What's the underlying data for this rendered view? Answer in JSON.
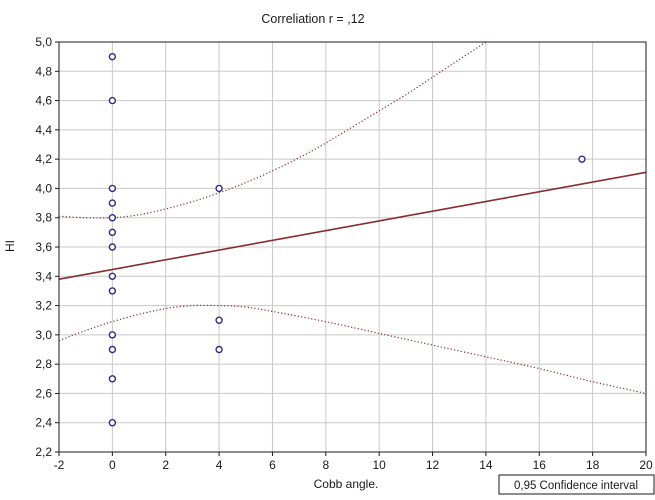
{
  "chart_data": {
    "type": "scatter",
    "title": "Correliation  r =   ,12",
    "xlabel": "Cobb angle.",
    "ylabel": "HI",
    "xlim": [
      -2,
      20
    ],
    "ylim": [
      2.2,
      5.0
    ],
    "x_ticks": [
      -2,
      0,
      2,
      4,
      6,
      8,
      10,
      12,
      14,
      16,
      18,
      20
    ],
    "x_tick_labels": [
      "-2",
      "0",
      "2",
      "4",
      "6",
      "8",
      "10",
      "12",
      "14",
      "16",
      "18",
      "20"
    ],
    "y_ticks": [
      2.2,
      2.4,
      2.6,
      2.8,
      3.0,
      3.2,
      3.4,
      3.6,
      3.8,
      4.0,
      4.2,
      4.4,
      4.6,
      4.8,
      5.0
    ],
    "y_tick_labels": [
      "2,2",
      "2,4",
      "2,6",
      "2,8",
      "3,0",
      "3,2",
      "3,4",
      "3,6",
      "3,8",
      "4,0",
      "4,2",
      "4,4",
      "4,6",
      "4,8",
      "5,0"
    ],
    "grid": true,
    "points": [
      {
        "x": 0,
        "y": 4.9
      },
      {
        "x": 0,
        "y": 4.6
      },
      {
        "x": 0,
        "y": 4.0
      },
      {
        "x": 0,
        "y": 3.9
      },
      {
        "x": 0,
        "y": 3.8
      },
      {
        "x": 0,
        "y": 3.7
      },
      {
        "x": 0,
        "y": 3.6
      },
      {
        "x": 0,
        "y": 3.4
      },
      {
        "x": 0,
        "y": 3.3
      },
      {
        "x": 0,
        "y": 3.0
      },
      {
        "x": 0,
        "y": 2.9
      },
      {
        "x": 0,
        "y": 2.7
      },
      {
        "x": 0,
        "y": 2.4
      },
      {
        "x": 4,
        "y": 4.0
      },
      {
        "x": 4,
        "y": 3.1
      },
      {
        "x": 4,
        "y": 2.9
      },
      {
        "x": 17.6,
        "y": 4.2
      }
    ],
    "regression": {
      "x": [
        -2,
        20
      ],
      "y": [
        3.38,
        4.11
      ]
    },
    "ci_upper": {
      "x": [
        -2,
        -1,
        0,
        1,
        2,
        3,
        4,
        5,
        6,
        7,
        8,
        9,
        10,
        11,
        12,
        13,
        14
      ],
      "y": [
        3.81,
        3.8,
        3.8,
        3.82,
        3.86,
        3.91,
        3.97,
        4.04,
        4.12,
        4.21,
        4.31,
        4.42,
        4.53,
        4.64,
        4.76,
        4.88,
        5.0
      ]
    },
    "ci_lower": {
      "x": [
        -2,
        -1,
        0,
        1,
        2,
        3,
        4,
        5,
        6,
        8,
        10,
        12,
        14,
        16,
        18,
        20
      ],
      "y": [
        2.96,
        3.03,
        3.09,
        3.14,
        3.18,
        3.2,
        3.2,
        3.19,
        3.16,
        3.09,
        3.01,
        2.93,
        2.85,
        2.77,
        2.68,
        2.6
      ]
    },
    "legend": "0,95 Confidence interval",
    "legend_position": "bottom-right",
    "colors": {
      "points": "#2b2b8c",
      "regression": "#8b2a2a",
      "confidence": "#8b2a2a",
      "grid": "#c8c8c8",
      "frame": "#1a1a1a"
    }
  }
}
